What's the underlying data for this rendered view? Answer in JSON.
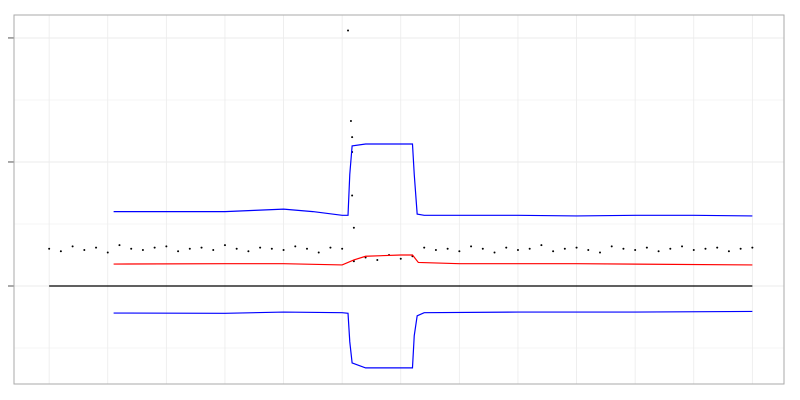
{
  "chart_data": {
    "type": "combo",
    "xlim": [
      -60,
      1254
    ],
    "ylim": [
      -0.79,
      2.185
    ],
    "xticks": [
      0,
      100,
      200,
      300,
      400,
      500,
      600,
      700,
      800,
      900,
      1000,
      1100,
      1200
    ],
    "yticks": [
      0,
      1,
      2
    ],
    "yminor": [
      -0.5,
      0.5,
      1.5
    ],
    "grid": true,
    "series": [
      {
        "mode": "points",
        "color": "#000000",
        "x": [
          0,
          20,
          40,
          60,
          80,
          100,
          120,
          140,
          160,
          180,
          200,
          220,
          240,
          260,
          280,
          300,
          320,
          340,
          360,
          380,
          400,
          420,
          440,
          460,
          480,
          500,
          520,
          540,
          560,
          580,
          600,
          620,
          640,
          660,
          680,
          700,
          720,
          740,
          760,
          780,
          800,
          820,
          840,
          860,
          880,
          900,
          920,
          940,
          960,
          980,
          1000,
          1020,
          1040,
          1060,
          1080,
          1100,
          1120,
          1140,
          1160,
          1180,
          1200
        ],
        "values": [
          0.3,
          0.28,
          0.32,
          0.29,
          0.31,
          0.27,
          0.33,
          0.3,
          0.29,
          0.31,
          0.32,
          0.28,
          0.3,
          0.31,
          0.29,
          0.33,
          0.3,
          0.28,
          0.31,
          0.3,
          0.29,
          0.32,
          0.3,
          0.27,
          0.31,
          0.3,
          0.2,
          0.23,
          0.21,
          0.25,
          0.22,
          0.24,
          0.31,
          0.29,
          0.3,
          0.28,
          0.32,
          0.3,
          0.27,
          0.31,
          0.29,
          0.3,
          0.33,
          0.28,
          0.3,
          0.31,
          0.29,
          0.27,
          0.32,
          0.3,
          0.29,
          0.31,
          0.28,
          0.3,
          0.32,
          0.29,
          0.3,
          0.31,
          0.28,
          0.3,
          0.31
        ]
      },
      {
        "mode": "points",
        "color": "#000000",
        "x": [
          510,
          515,
          517,
          517,
          517,
          520
        ],
        "values": [
          2.06,
          1.33,
          1.2,
          1.08,
          0.73,
          0.47
        ]
      },
      {
        "mode": "line",
        "color": "#000000",
        "x": [
          0,
          1200
        ],
        "values": [
          0,
          0
        ]
      },
      {
        "mode": "line",
        "color": "#0000ff",
        "x": [
          110,
          200,
          300,
          350,
          400,
          450,
          500,
          510,
          513,
          517,
          540,
          600,
          620,
          623,
          628,
          640,
          700,
          800,
          900,
          1000,
          1100,
          1200
        ],
        "values": [
          0.6,
          0.6,
          0.6,
          0.61,
          0.62,
          0.6,
          0.57,
          0.57,
          0.9,
          1.13,
          1.145,
          1.145,
          1.145,
          0.9,
          0.58,
          0.57,
          0.57,
          0.57,
          0.565,
          0.57,
          0.57,
          0.565
        ]
      },
      {
        "mode": "line",
        "color": "#ff0000",
        "x": [
          110,
          300,
          400,
          500,
          520,
          540,
          600,
          620,
          630,
          700,
          900,
          1200
        ],
        "values": [
          0.177,
          0.18,
          0.18,
          0.17,
          0.21,
          0.24,
          0.25,
          0.25,
          0.19,
          0.18,
          0.18,
          0.17
        ]
      },
      {
        "mode": "line",
        "color": "#0000ff",
        "x": [
          110,
          300,
          400,
          500,
          510,
          513,
          517,
          540,
          600,
          620,
          623,
          628,
          640,
          800,
          1000,
          1200
        ],
        "values": [
          -0.218,
          -0.22,
          -0.21,
          -0.215,
          -0.22,
          -0.45,
          -0.62,
          -0.66,
          -0.66,
          -0.66,
          -0.4,
          -0.24,
          -0.215,
          -0.21,
          -0.21,
          -0.205
        ]
      }
    ]
  }
}
